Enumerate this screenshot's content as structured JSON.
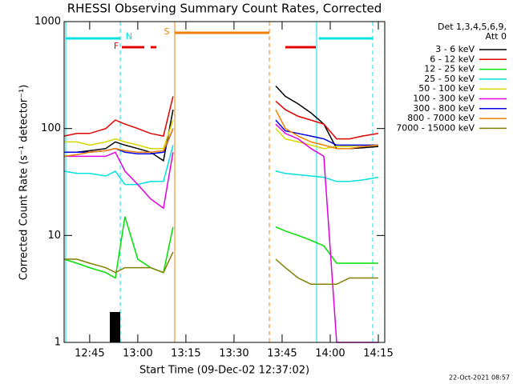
{
  "chart_data": {
    "type": "line",
    "title": "RHESSI Observing Summary Count Rates, Corrected",
    "x_label": "Start Time (09-Dec-02 12:37:02)",
    "y_label": "Corrected Count Rate (s⁻¹ detector⁻¹)",
    "legend_title": [
      "Det 1,3,4,5,6,9,",
      "Att 0"
    ],
    "footer": "22-Oct-2021 08:57",
    "flags": [
      "F",
      "N",
      "S"
    ],
    "log_y": true,
    "xlim": [
      "12:37:02",
      "14:17"
    ],
    "xticks": [
      "12:45",
      "13:00",
      "13:15",
      "13:30",
      "13:45",
      "14:00",
      "14:15"
    ],
    "ylim": [
      1,
      1000
    ],
    "yticks": [
      1,
      10,
      100,
      1000
    ],
    "x": [
      "12:37",
      "12:41",
      "12:45",
      "12:50",
      "12:53",
      "12:56",
      "13:00",
      "13:04",
      "13:08",
      "13:11",
      "13:27",
      "13:43",
      "13:46",
      "13:50",
      "13:54",
      "13:58",
      "14:02",
      "14:06",
      "14:10",
      "14:15"
    ],
    "series": [
      {
        "name": "3 - 6 keV",
        "color": "#000000",
        "values": [
          60,
          60,
          62,
          65,
          75,
          70,
          65,
          60,
          50,
          150,
          null,
          250,
          200,
          170,
          140,
          110,
          65,
          65,
          66,
          68
        ]
      },
      {
        "name": "6 - 12 keV",
        "color": "#e00000",
        "values": [
          85,
          90,
          90,
          100,
          120,
          110,
          100,
          90,
          85,
          200,
          null,
          180,
          150,
          130,
          120,
          110,
          80,
          80,
          85,
          90
        ]
      },
      {
        "name": "12 - 25 keV",
        "color": "#00e000",
        "values": [
          6,
          5.5,
          5,
          4.5,
          4,
          15,
          6,
          5,
          4.5,
          12,
          null,
          12,
          11,
          10,
          9,
          8,
          5.5,
          5.5,
          5.5,
          5.5
        ]
      },
      {
        "name": "25 - 50 keV",
        "color": "#00e0e0",
        "values": [
          40,
          38,
          38,
          36,
          40,
          30,
          30,
          32,
          32,
          70,
          null,
          40,
          38,
          37,
          36,
          35,
          32,
          32,
          33,
          35
        ]
      },
      {
        "name": "50 - 100 keV",
        "color": "#d8d800",
        "values": [
          75,
          75,
          70,
          75,
          80,
          75,
          70,
          65,
          65,
          120,
          null,
          100,
          80,
          75,
          70,
          65,
          68,
          68,
          70,
          70
        ]
      },
      {
        "name": "100 - 300 keV",
        "color": "#e000e0",
        "values": [
          55,
          55,
          55,
          55,
          60,
          40,
          30,
          22,
          18,
          60,
          null,
          110,
          90,
          80,
          65,
          55,
          1,
          1,
          1,
          1
        ]
      },
      {
        "name": "300 - 800 keV",
        "color": "#0000e0",
        "values": [
          60,
          60,
          60,
          62,
          65,
          60,
          58,
          58,
          60,
          100,
          null,
          120,
          95,
          90,
          85,
          80,
          70,
          70,
          70,
          70
        ]
      },
      {
        "name": "800 - 7000 keV",
        "color": "#f08000",
        "values": [
          55,
          57,
          60,
          62,
          65,
          62,
          60,
          60,
          62,
          100,
          null,
          150,
          100,
          85,
          75,
          70,
          65,
          65,
          68,
          70
        ]
      },
      {
        "name": "7000 - 15000 keV",
        "color": "#808000",
        "values": [
          6,
          6,
          5.5,
          5,
          4.5,
          5,
          5,
          5,
          4.5,
          7,
          null,
          6,
          5,
          4,
          3.5,
          3.5,
          3.5,
          4,
          4,
          4
        ]
      }
    ]
  }
}
